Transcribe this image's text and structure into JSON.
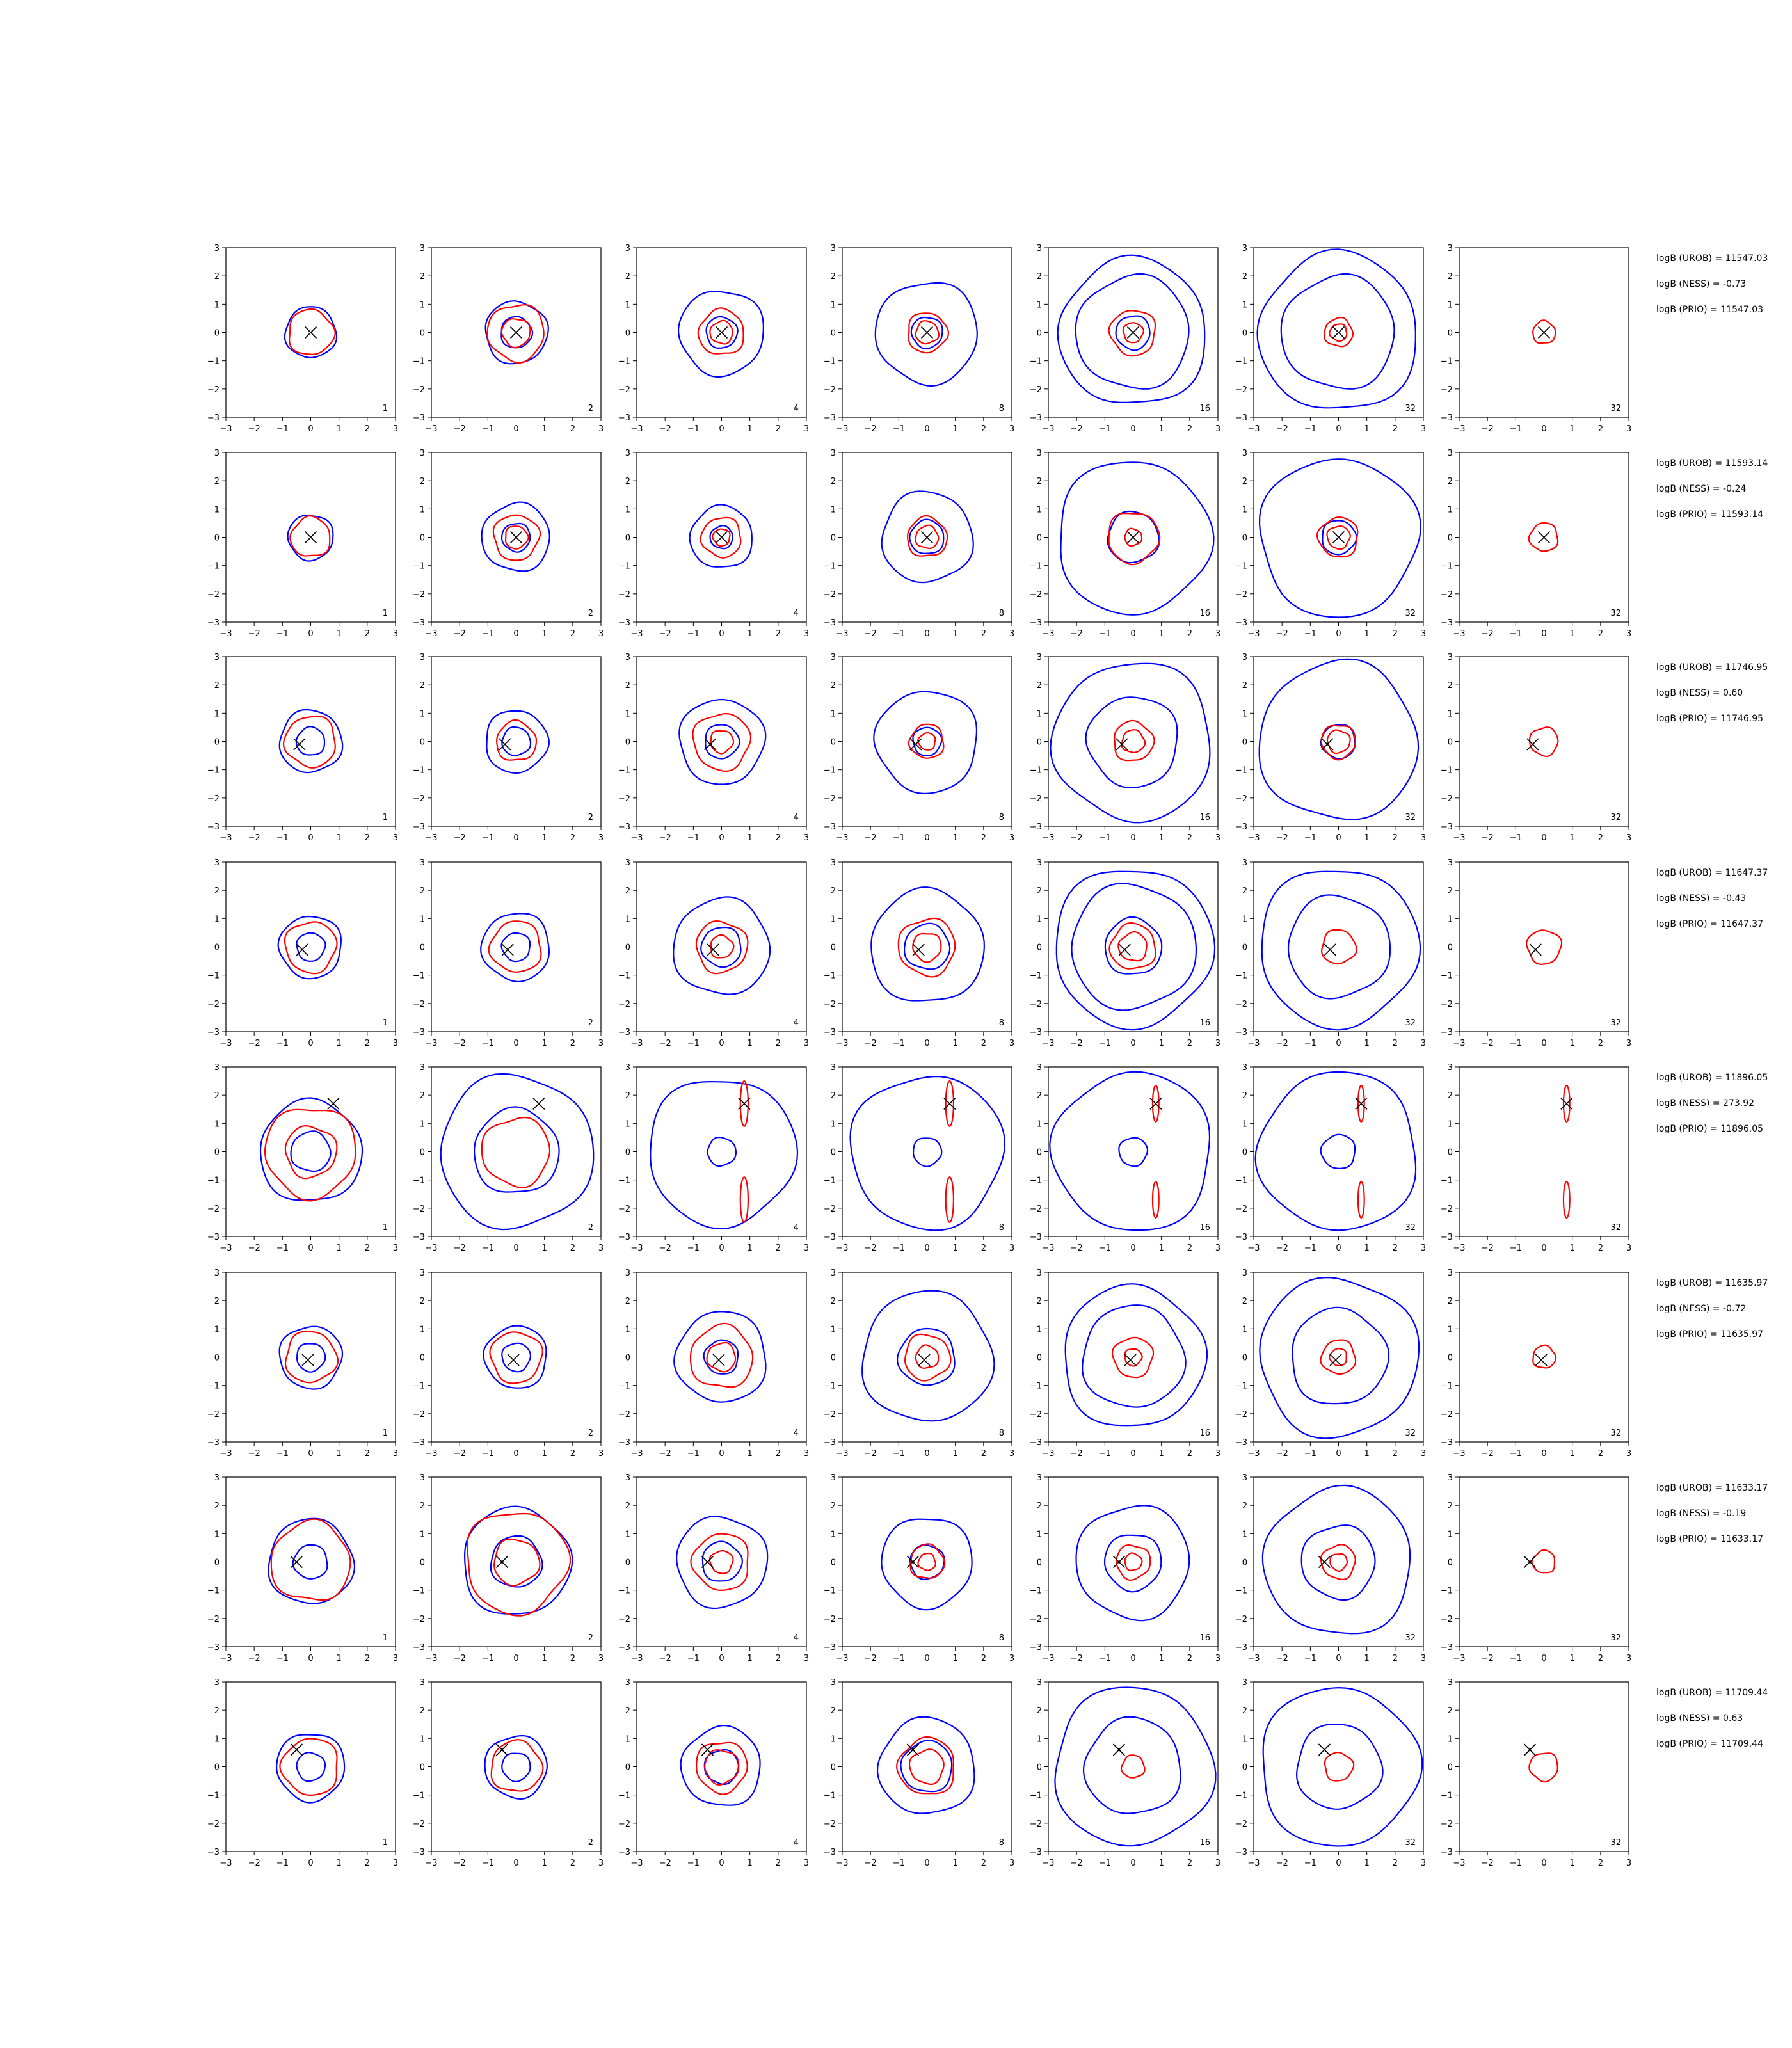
{
  "chart_data": {
    "type": "contour_grid",
    "xlim": [
      -3,
      3
    ],
    "ylim": [
      -3,
      3
    ],
    "x_ticks": [
      -3,
      -2,
      -1,
      0,
      1,
      2,
      3
    ],
    "y_ticks": [
      -3,
      -2,
      -1,
      0,
      1,
      2,
      3
    ],
    "grid": false,
    "colors": {
      "blue_contour": "#0000ff",
      "red_contour": "#ff0000",
      "marker": "#000000"
    },
    "columns": [
      {
        "tag": "1",
        "label": "1"
      },
      {
        "tag": "2",
        "label": "2"
      },
      {
        "tag": "4",
        "label": "4"
      },
      {
        "tag": "8",
        "label": "8"
      },
      {
        "tag": "16",
        "label": "16"
      },
      {
        "tag": "32",
        "label": "32"
      },
      {
        "tag": "32",
        "label": "32"
      }
    ],
    "rows": [
      {
        "marker": [
          0,
          0
        ],
        "annotations": [
          "logB (UROB) = 11547.03",
          "logB (NESS) = -0.73",
          "logB (PRIO) = 11547.03"
        ],
        "blue_radii": [
          [
            0.9
          ],
          [
            0.55,
            1.1
          ],
          [
            0.55,
            1.5
          ],
          [
            0.55,
            1.8
          ],
          [
            0.6,
            2.0,
            2.6
          ],
          [
            2.0,
            2.8
          ],
          []
        ],
        "red_radii": [
          [
            0.8
          ],
          [
            0.5,
            1.0
          ],
          [
            0.4,
            0.8
          ],
          [
            0.4,
            0.7
          ],
          [
            0.35,
            0.8
          ],
          [
            0.3,
            0.5
          ],
          [
            0.4
          ]
        ]
      },
      {
        "marker": [
          0,
          0
        ],
        "annotations": [
          "logB (UROB) = 11593.14",
          "logB (NESS) = -0.24",
          "logB (PRIO) = 11593.14"
        ],
        "blue_radii": [
          [
            0.8
          ],
          [
            0.5,
            1.2
          ],
          [
            0.4,
            1.1
          ],
          [
            0.6,
            1.6
          ],
          [
            0.9,
            2.7
          ],
          [
            0.6,
            2.8
          ],
          []
        ],
        "red_radii": [
          [
            0.7
          ],
          [
            0.4,
            0.8
          ],
          [
            0.3,
            0.7
          ],
          [
            0.4,
            0.7
          ],
          [
            0.3,
            0.9
          ],
          [
            0.4,
            0.7
          ],
          [
            0.5
          ]
        ]
      },
      {
        "marker": [
          -0.4,
          -0.1
        ],
        "annotations": [
          "logB (UROB) = 11746.95",
          "logB (NESS) = 0.60",
          "logB (PRIO) = 11746.95"
        ],
        "blue_radii": [
          [
            0.5,
            1.1
          ],
          [
            0.5,
            1.1
          ],
          [
            0.6,
            1.5
          ],
          [
            0.5,
            1.8
          ],
          [
            1.6,
            2.8
          ],
          [
            0.6,
            2.8
          ],
          []
        ],
        "red_radii": [
          [
            0.9
          ],
          [
            0.7
          ],
          [
            0.4,
            1.0
          ],
          [
            0.3,
            0.6
          ],
          [
            0.4,
            0.7
          ],
          [
            0.4,
            0.6
          ],
          [
            0.5
          ]
        ]
      },
      {
        "marker": [
          -0.3,
          -0.1
        ],
        "annotations": [
          "logB (UROB) = 11647.37",
          "logB (NESS) = -0.43",
          "logB (PRIO) = 11647.37"
        ],
        "blue_radii": [
          [
            0.5,
            1.1
          ],
          [
            0.5,
            1.2
          ],
          [
            0.7,
            1.7
          ],
          [
            0.8,
            2.0
          ],
          [
            1.0,
            2.2,
            2.8
          ],
          [
            1.8,
            2.8
          ],
          []
        ],
        "red_radii": [
          [
            0.9
          ],
          [
            0.9
          ],
          [
            0.4,
            0.9
          ],
          [
            0.5,
            1.0
          ],
          [
            0.5,
            0.8
          ],
          [
            0.6
          ],
          [
            0.6
          ]
        ]
      },
      {
        "marker": [
          0.8,
          1.7
        ],
        "annotations": [
          "logB (UROB) = 11896.05",
          "logB (NESS) = 273.92",
          "logB (PRIO) = 11896.05"
        ],
        "blue_radii": [
          [
            0.7,
            1.8
          ],
          [
            1.5,
            2.7
          ],
          [
            0.5,
            2.6
          ],
          [
            0.5,
            2.7
          ],
          [
            0.5,
            2.8
          ],
          [
            0.6,
            2.8
          ],
          []
        ],
        "red_radii": [
          [
            0.9,
            1.6
          ],
          [
            1.2
          ],
          [
            0.25
          ],
          [
            0.25
          ],
          [
            0.2
          ],
          [
            0.2
          ],
          [
            0.2
          ]
        ]
      },
      {
        "marker": [
          -0.1,
          -0.1
        ],
        "annotations": [
          "logB (UROB) = 11635.97",
          "logB (NESS) = -0.72",
          "logB (PRIO) = 11635.97"
        ],
        "blue_radii": [
          [
            0.5,
            1.1
          ],
          [
            0.5,
            1.1
          ],
          [
            0.6,
            1.6
          ],
          [
            1.0,
            2.3
          ],
          [
            1.8,
            2.5
          ],
          [
            1.7,
            2.8
          ],
          []
        ],
        "red_radii": [
          [
            0.9
          ],
          [
            0.9
          ],
          [
            0.5,
            1.1
          ],
          [
            0.4,
            0.8
          ],
          [
            0.3,
            0.7
          ],
          [
            0.3,
            0.6
          ],
          [
            0.4
          ]
        ]
      },
      {
        "marker": [
          -0.5,
          0.0
        ],
        "annotations": [
          "logB (UROB) = 11633.17",
          "logB (NESS) = -0.19",
          "logB (PRIO) = 11633.17"
        ],
        "blue_radii": [
          [
            0.6,
            1.5
          ],
          [
            0.9,
            1.9
          ],
          [
            0.7,
            1.6
          ],
          [
            0.6,
            1.6
          ],
          [
            1.0,
            2.0
          ],
          [
            1.3,
            2.6
          ],
          []
        ],
        "red_radii": [
          [
            1.4
          ],
          [
            0.8,
            1.8
          ],
          [
            0.4,
            1.0
          ],
          [
            0.3,
            0.6
          ],
          [
            0.3,
            0.6
          ],
          [
            0.3,
            0.6
          ],
          [
            0.4
          ]
        ]
      },
      {
        "marker": [
          -0.5,
          0.6
        ],
        "annotations": [
          "logB (UROB) = 11709.44",
          "logB (NESS) = 0.63",
          "logB (PRIO) = 11709.44"
        ],
        "blue_radii": [
          [
            0.5,
            1.2
          ],
          [
            0.5,
            1.1
          ],
          [
            0.6,
            1.4
          ],
          [
            0.9,
            1.7
          ],
          [
            1.7,
            2.8
          ],
          [
            1.5,
            2.8
          ],
          []
        ],
        "red_radii": [
          [
            1.0
          ],
          [
            0.9
          ],
          [
            0.6,
            0.9
          ],
          [
            0.6,
            1.0
          ],
          [
            0.4
          ],
          [
            0.5
          ],
          [
            0.5
          ]
        ]
      }
    ]
  }
}
